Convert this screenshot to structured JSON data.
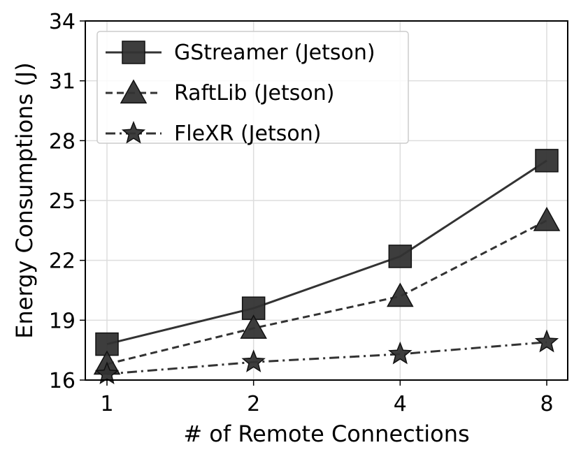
{
  "chart_data": {
    "type": "line",
    "categories": [
      "1",
      "2",
      "4",
      "8"
    ],
    "series": [
      {
        "name": "GStreamer (Jetson)",
        "values": [
          17.8,
          19.6,
          22.2,
          27.0
        ],
        "marker": "square",
        "linestyle": "solid"
      },
      {
        "name": "RaftLib (Jetson)",
        "values": [
          16.8,
          18.6,
          20.2,
          24.0
        ],
        "marker": "triangle",
        "linestyle": "dashed"
      },
      {
        "name": "FleXR (Jetson)",
        "values": [
          16.3,
          16.9,
          17.3,
          17.9
        ],
        "marker": "star",
        "linestyle": "dashdot"
      }
    ],
    "xlabel": "# of Remote Connections",
    "ylabel": "Energy Consumptions (J)",
    "ylim": [
      16,
      34
    ],
    "yticks": [
      16,
      19,
      22,
      25,
      28,
      31,
      34
    ],
    "grid": true,
    "legend": "top-left",
    "line_color": "#333333",
    "marker_fill": "#333333"
  }
}
